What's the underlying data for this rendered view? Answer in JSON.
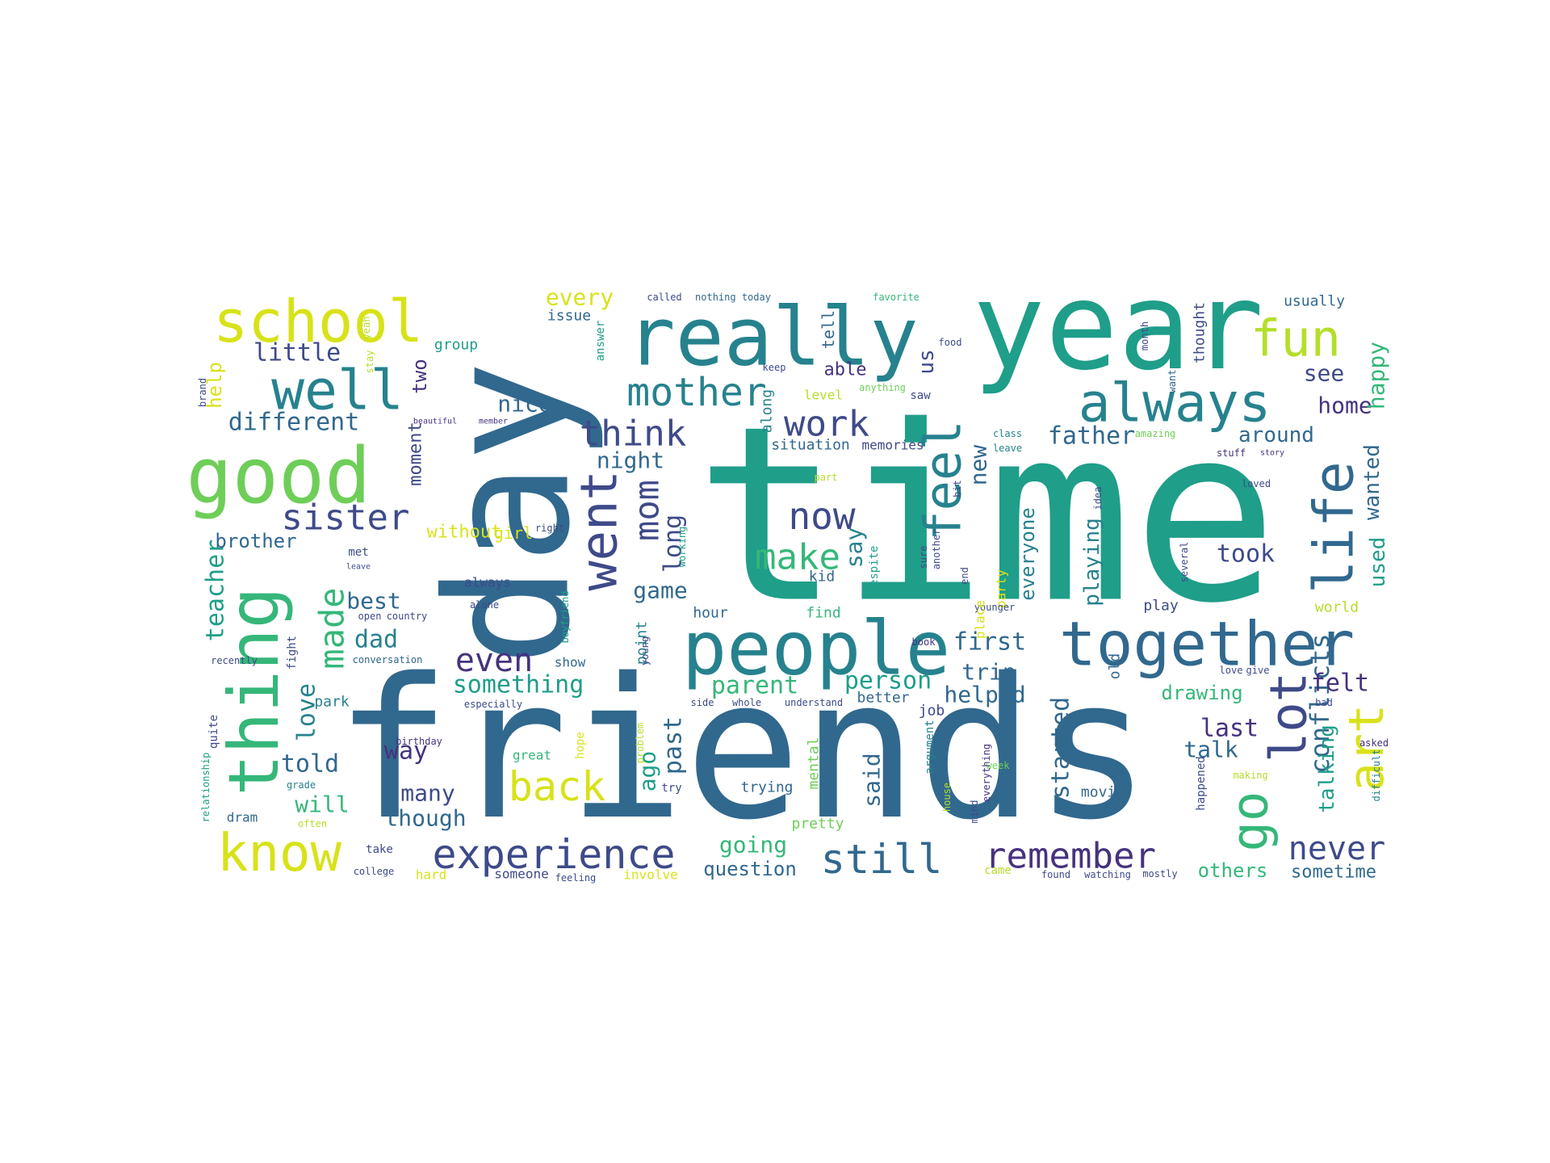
{
  "word_cloud": {
    "palette": {
      "dark_purple": "#46327e",
      "indigo": "#3e4a89",
      "steel_blue": "#31688e",
      "teal_blue": "#26828e",
      "teal": "#1f9e89",
      "green": "#35b779",
      "light_green": "#6ece58",
      "lime": "#b5de2b",
      "yellow": "#d8e219"
    },
    "words": [
      {
        "text": "time",
        "color": "teal"
      },
      {
        "text": "friends",
        "color": "steel_blue"
      },
      {
        "text": "day",
        "color": "steel_blue"
      },
      {
        "text": "year",
        "color": "teal"
      },
      {
        "text": "really",
        "color": "teal_blue"
      },
      {
        "text": "people",
        "color": "teal_blue"
      },
      {
        "text": "thing",
        "color": "green"
      },
      {
        "text": "good",
        "color": "light_green"
      },
      {
        "text": "school",
        "color": "yellow"
      },
      {
        "text": "together",
        "color": "steel_blue"
      },
      {
        "text": "always",
        "color": "teal_blue"
      },
      {
        "text": "fun",
        "color": "lime"
      },
      {
        "text": "well",
        "color": "teal_blue"
      },
      {
        "text": "life",
        "color": "steel_blue"
      },
      {
        "text": "know",
        "color": "yellow"
      },
      {
        "text": "went",
        "color": "indigo"
      },
      {
        "text": "feel",
        "color": "teal_blue"
      },
      {
        "text": "lot",
        "color": "indigo"
      },
      {
        "text": "mother",
        "color": "teal_blue"
      },
      {
        "text": "go",
        "color": "green"
      },
      {
        "text": "art",
        "color": "yellow"
      },
      {
        "text": "experience",
        "color": "indigo"
      },
      {
        "text": "remember",
        "color": "dark_purple"
      },
      {
        "text": "still",
        "color": "steel_blue"
      },
      {
        "text": "back",
        "color": "yellow"
      },
      {
        "text": "think",
        "color": "indigo"
      },
      {
        "text": "sister",
        "color": "indigo"
      },
      {
        "text": "now",
        "color": "indigo"
      },
      {
        "text": "make",
        "color": "green"
      },
      {
        "text": "work",
        "color": "indigo"
      },
      {
        "text": "mom",
        "color": "indigo"
      },
      {
        "text": "made",
        "color": "green"
      },
      {
        "text": "never",
        "color": "indigo"
      },
      {
        "text": "even",
        "color": "dark_purple"
      },
      {
        "text": "conflicts",
        "color": "steel_blue"
      },
      {
        "text": "teacher",
        "color": "teal"
      },
      {
        "text": "little",
        "color": "indigo"
      },
      {
        "text": "different",
        "color": "steel_blue"
      },
      {
        "text": "nice",
        "color": "steel_blue"
      },
      {
        "text": "night",
        "color": "steel_blue"
      },
      {
        "text": "father",
        "color": "steel_blue"
      },
      {
        "text": "home",
        "color": "dark_purple"
      },
      {
        "text": "see",
        "color": "indigo"
      },
      {
        "text": "happy",
        "color": "green"
      },
      {
        "text": "around",
        "color": "steel_blue"
      },
      {
        "text": "took",
        "color": "indigo"
      },
      {
        "text": "used",
        "color": "teal"
      },
      {
        "text": "wanted",
        "color": "steel_blue"
      },
      {
        "text": "brother",
        "color": "steel_blue"
      },
      {
        "text": "best",
        "color": "steel_blue"
      },
      {
        "text": "dad",
        "color": "teal_blue"
      },
      {
        "text": "game",
        "color": "steel_blue"
      },
      {
        "text": "long",
        "color": "indigo"
      },
      {
        "text": "first",
        "color": "steel_blue"
      },
      {
        "text": "trip",
        "color": "steel_blue"
      },
      {
        "text": "felt",
        "color": "dark_purple"
      },
      {
        "text": "something",
        "color": "teal"
      },
      {
        "text": "parent",
        "color": "green"
      },
      {
        "text": "person",
        "color": "teal"
      },
      {
        "text": "helped",
        "color": "steel_blue"
      },
      {
        "text": "love",
        "color": "teal_blue"
      },
      {
        "text": "told",
        "color": "steel_blue"
      },
      {
        "text": "way",
        "color": "dark_purple"
      },
      {
        "text": "many",
        "color": "indigo"
      },
      {
        "text": "will",
        "color": "green"
      },
      {
        "text": "though",
        "color": "steel_blue"
      },
      {
        "text": "going",
        "color": "green"
      },
      {
        "text": "question",
        "color": "steel_blue"
      },
      {
        "text": "past",
        "color": "steel_blue"
      },
      {
        "text": "ago",
        "color": "teal"
      },
      {
        "text": "last",
        "color": "dark_purple"
      },
      {
        "text": "talk",
        "color": "steel_blue"
      },
      {
        "text": "talking",
        "color": "teal"
      },
      {
        "text": "started",
        "color": "steel_blue"
      },
      {
        "text": "said",
        "color": "steel_blue"
      },
      {
        "text": "say",
        "color": "teal_blue"
      },
      {
        "text": "new",
        "color": "steel_blue"
      },
      {
        "text": "everyone",
        "color": "teal_blue"
      },
      {
        "text": "playing",
        "color": "teal_blue"
      },
      {
        "text": "drawing",
        "color": "green"
      },
      {
        "text": "others",
        "color": "green"
      },
      {
        "text": "sometime",
        "color": "steel_blue"
      },
      {
        "text": "every",
        "color": "yellow"
      },
      {
        "text": "us",
        "color": "indigo"
      },
      {
        "text": "help",
        "color": "yellow"
      },
      {
        "text": "two",
        "color": "dark_purple"
      },
      {
        "text": "moment",
        "color": "indigo"
      },
      {
        "text": "without",
        "color": "yellow"
      },
      {
        "text": "girl",
        "color": "yellow"
      },
      {
        "text": "able",
        "color": "dark_purple"
      },
      {
        "text": "issue",
        "color": "steel_blue"
      },
      {
        "text": "group",
        "color": "teal"
      },
      {
        "text": "tell",
        "color": "steel_blue"
      },
      {
        "text": "usually",
        "color": "steel_blue"
      },
      {
        "text": "thought",
        "color": "indigo"
      },
      {
        "text": "called",
        "color": "indigo"
      },
      {
        "text": "nothing today",
        "color": "steel_blue"
      },
      {
        "text": "favorite",
        "color": "green"
      },
      {
        "text": "answer",
        "color": "teal"
      },
      {
        "text": "situation",
        "color": "steel_blue"
      },
      {
        "text": "memories",
        "color": "indigo"
      },
      {
        "text": "along",
        "color": "teal_blue"
      },
      {
        "text": "level",
        "color": "lime"
      },
      {
        "text": "saw",
        "color": "indigo"
      },
      {
        "text": "food",
        "color": "indigo"
      },
      {
        "text": "want",
        "color": "steel_blue"
      },
      {
        "text": "class",
        "color": "teal_blue"
      },
      {
        "text": "leave",
        "color": "teal_blue"
      },
      {
        "text": "amazing",
        "color": "light_green"
      },
      {
        "text": "stuff",
        "color": "dark_purple"
      },
      {
        "text": "story",
        "color": "dark_purple"
      },
      {
        "text": "beautiful",
        "color": "dark_purple"
      },
      {
        "text": "member",
        "color": "dark_purple"
      },
      {
        "text": "kid",
        "color": "steel_blue"
      },
      {
        "text": "despite",
        "color": "teal"
      },
      {
        "text": "anything",
        "color": "light_green"
      },
      {
        "text": "party",
        "color": "yellow"
      },
      {
        "text": "younger",
        "color": "indigo"
      },
      {
        "text": "end",
        "color": "indigo"
      },
      {
        "text": "place",
        "color": "yellow"
      },
      {
        "text": "old",
        "color": "steel_blue"
      },
      {
        "text": "world",
        "color": "lime"
      },
      {
        "text": "play",
        "color": "indigo"
      },
      {
        "text": "hour",
        "color": "steel_blue"
      },
      {
        "text": "find",
        "color": "green"
      },
      {
        "text": "point",
        "color": "teal_blue"
      },
      {
        "text": "show",
        "color": "steel_blue"
      },
      {
        "text": "always",
        "color": "indigo"
      },
      {
        "text": "alone",
        "color": "indigo"
      },
      {
        "text": "met",
        "color": "indigo"
      },
      {
        "text": "leave",
        "color": "indigo"
      },
      {
        "text": "fight",
        "color": "indigo"
      },
      {
        "text": "open",
        "color": "indigo"
      },
      {
        "text": "country",
        "color": "indigo"
      },
      {
        "text": "recently",
        "color": "indigo"
      },
      {
        "text": "conversation",
        "color": "steel_blue"
      },
      {
        "text": "park",
        "color": "teal_blue"
      },
      {
        "text": "especially",
        "color": "indigo"
      },
      {
        "text": "whole",
        "color": "indigo"
      },
      {
        "text": "understand",
        "color": "indigo"
      },
      {
        "text": "better",
        "color": "steel_blue"
      },
      {
        "text": "job",
        "color": "indigo"
      },
      {
        "text": "side",
        "color": "indigo"
      },
      {
        "text": "quite",
        "color": "indigo"
      },
      {
        "text": "relationship",
        "color": "teal"
      },
      {
        "text": "grade",
        "color": "teal_blue"
      },
      {
        "text": "dram",
        "color": "steel_blue"
      },
      {
        "text": "often",
        "color": "lime"
      },
      {
        "text": "take",
        "color": "indigo"
      },
      {
        "text": "college",
        "color": "indigo"
      },
      {
        "text": "hard",
        "color": "yellow"
      },
      {
        "text": "someone",
        "color": "indigo"
      },
      {
        "text": "feeling",
        "color": "indigo"
      },
      {
        "text": "involve",
        "color": "yellow"
      },
      {
        "text": "pretty",
        "color": "light_green"
      },
      {
        "text": "try",
        "color": "indigo"
      },
      {
        "text": "great",
        "color": "green"
      },
      {
        "text": "hope",
        "color": "yellow"
      },
      {
        "text": "problem",
        "color": "lime"
      },
      {
        "text": "trying",
        "color": "steel_blue"
      },
      {
        "text": "mental",
        "color": "light_green"
      },
      {
        "text": "argument",
        "color": "teal_blue"
      },
      {
        "text": "week",
        "color": "light_green"
      },
      {
        "text": "movie",
        "color": "steel_blue"
      },
      {
        "text": "happened",
        "color": "indigo"
      },
      {
        "text": "making",
        "color": "lime"
      },
      {
        "text": "asked",
        "color": "dark_purple"
      },
      {
        "text": "difficult",
        "color": "teal_blue"
      },
      {
        "text": "came",
        "color": "lime"
      },
      {
        "text": "found",
        "color": "indigo"
      },
      {
        "text": "watching",
        "color": "indigo"
      },
      {
        "text": "mostly",
        "color": "indigo"
      },
      {
        "text": "birthday",
        "color": "dark_purple"
      },
      {
        "text": "boyfriend",
        "color": "teal"
      },
      {
        "text": "book",
        "color": "dark_purple"
      },
      {
        "text": "several",
        "color": "indigo"
      },
      {
        "text": "loved",
        "color": "indigo"
      },
      {
        "text": "love",
        "color": "indigo"
      },
      {
        "text": "give",
        "color": "indigo"
      },
      {
        "text": "bad",
        "color": "indigo"
      },
      {
        "text": "right",
        "color": "indigo"
      },
      {
        "text": "sure",
        "color": "indigo"
      },
      {
        "text": "another",
        "color": "indigo"
      },
      {
        "text": "bit",
        "color": "indigo"
      },
      {
        "text": "keep",
        "color": "indigo"
      },
      {
        "text": "month",
        "color": "indigo"
      },
      {
        "text": "yeah",
        "color": "lime"
      },
      {
        "text": "stay",
        "color": "lime"
      },
      {
        "text": "brand",
        "color": "indigo"
      },
      {
        "text": "young",
        "color": "indigo"
      },
      {
        "text": "working",
        "color": "teal"
      },
      {
        "text": "part",
        "color": "lime"
      },
      {
        "text": "idea",
        "color": "indigo"
      },
      {
        "text": "house",
        "color": "lime"
      },
      {
        "text": "everything",
        "color": "dark_purple"
      },
      {
        "text": "mind",
        "color": "indigo"
      }
    ]
  }
}
